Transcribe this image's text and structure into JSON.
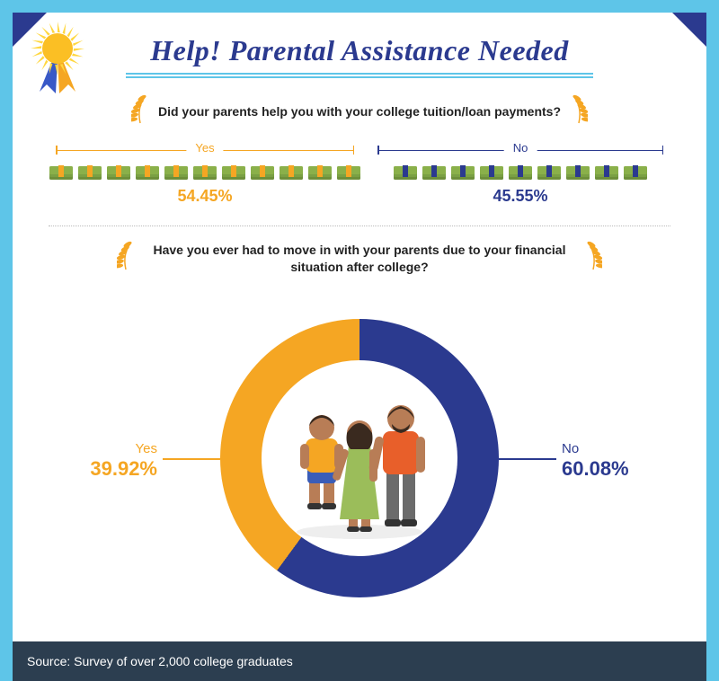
{
  "title": "Help! Parental Assistance Needed",
  "title_color": "#2b3a8f",
  "accent_color": "#5ec5e8",
  "seal": {
    "sun_color": "#ffd73e",
    "sun_core": "#fbbf24",
    "ribbon_left": "#3858c7",
    "ribbon_right": "#f5a623"
  },
  "q1": {
    "text": "Did your parents help you with your college tuition/loan payments?",
    "yes": {
      "label": "Yes",
      "pct": "54.45%",
      "color": "#f5a623",
      "icons": 11
    },
    "no": {
      "label": "No",
      "pct": "45.55%",
      "color": "#2b3a8f",
      "icons": 9
    },
    "money": {
      "band_color": "#8ab04a",
      "strap_yes": "#f5a623",
      "strap_no": "#2b3a8f"
    }
  },
  "q2": {
    "text": "Have you ever had to move in with your parents due to your financial situation after college?",
    "yes": {
      "label": "Yes",
      "pct": "39.92%",
      "value": 39.92,
      "color": "#f5a623"
    },
    "no": {
      "label": "No",
      "pct": "60.08%",
      "value": 60.08,
      "color": "#2b3a8f"
    },
    "donut_thickness": 46,
    "bg": "#ffffff"
  },
  "family": {
    "skin": "#b87d56",
    "hair": "#3a2a1f",
    "child_shirt": "#f5a623",
    "child_shorts": "#3a5db8",
    "mom_dress": "#9bbd5a",
    "dad_shirt": "#e85f2a",
    "dad_pants": "#6b6b6b",
    "shoe": "#333"
  },
  "laurel_color": "#f5a623",
  "footer": "Source: Survey of over 2,000 college graduates",
  "footer_bg": "#2c3e50"
}
